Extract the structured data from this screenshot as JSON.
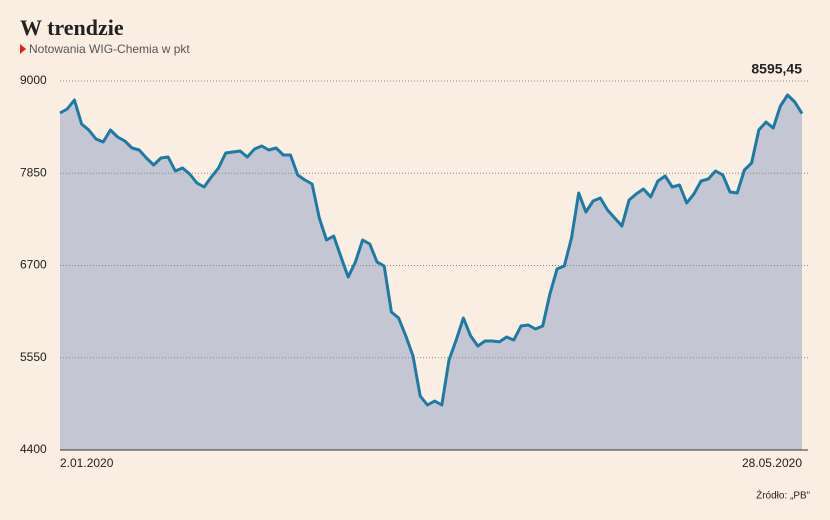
{
  "chart_data": {
    "type": "area",
    "title": "W trendzie",
    "subtitle": "Notowania WIG-Chemia w pkt",
    "source": "Źródło: „PB”",
    "categories": [
      "2.01.2020",
      null,
      null,
      null,
      null,
      null,
      null,
      null,
      null,
      null,
      null,
      null,
      null,
      null,
      null,
      null,
      null,
      null,
      null,
      null,
      null,
      null,
      null,
      null,
      null,
      null,
      null,
      null,
      null,
      null,
      null,
      null,
      null,
      null,
      null,
      null,
      null,
      null,
      null,
      null,
      null,
      null,
      null,
      null,
      null,
      null,
      null,
      null,
      null,
      null,
      null,
      null,
      null,
      null,
      null,
      null,
      null,
      null,
      null,
      null,
      null,
      null,
      null,
      null,
      null,
      null,
      null,
      null,
      null,
      null,
      null,
      null,
      null,
      null,
      null,
      null,
      null,
      null,
      null,
      null,
      null,
      null,
      null,
      null,
      null,
      null,
      null,
      null,
      null,
      null,
      null,
      null,
      null,
      null,
      null,
      null,
      null,
      null,
      null,
      null,
      null,
      null,
      null,
      "28.05.2020"
    ],
    "values": [
      8601,
      8651,
      8763,
      8464,
      8389,
      8277,
      8240,
      8389,
      8302,
      8252,
      8165,
      8140,
      8040,
      7953,
      8040,
      8053,
      7878,
      7915,
      7841,
      7728,
      7679,
      7803,
      7915,
      8102,
      8115,
      8127,
      8053,
      8152,
      8190,
      8140,
      8165,
      8078,
      8078,
      7828,
      7766,
      7716,
      7292,
      7018,
      7068,
      6806,
      6557,
      6744,
      7018,
      6968,
      6744,
      6694,
      6120,
      6046,
      5822,
      5572,
      5073,
      4961,
      5011,
      4961,
      5522,
      5771,
      6046,
      5822,
      5697,
      5759,
      5759,
      5747,
      5809,
      5771,
      5946,
      5958,
      5908,
      5946,
      6345,
      6657,
      6694,
      7043,
      7604,
      7367,
      7504,
      7542,
      7392,
      7292,
      7193,
      7517,
      7592,
      7654,
      7554,
      7753,
      7816,
      7679,
      7704,
      7479,
      7592,
      7753,
      7778,
      7878,
      7828,
      7616,
      7604,
      7890,
      7978,
      8389,
      8489,
      8414,
      8688,
      8825,
      8738,
      8595.45
    ],
    "value_labels": [
      null,
      null,
      null,
      null,
      null,
      null,
      null,
      null,
      null,
      null,
      null,
      null,
      null,
      null,
      null,
      null,
      null,
      null,
      null,
      null,
      null,
      null,
      null,
      null,
      null,
      null,
      null,
      null,
      null,
      null,
      null,
      null,
      null,
      null,
      null,
      null,
      null,
      null,
      null,
      null,
      null,
      null,
      null,
      null,
      null,
      null,
      null,
      null,
      null,
      null,
      null,
      null,
      null,
      null,
      null,
      null,
      null,
      null,
      null,
      null,
      null,
      null,
      null,
      null,
      null,
      null,
      null,
      null,
      null,
      null,
      null,
      null,
      null,
      null,
      null,
      null,
      null,
      null,
      null,
      null,
      null,
      null,
      null,
      null,
      null,
      null,
      null,
      null,
      null,
      null,
      null,
      null,
      null,
      null,
      null,
      null,
      null,
      null,
      null,
      null,
      null,
      null,
      null,
      "8595,45"
    ],
    "color": "#1c7aa3",
    "fill": "#c4c6d4",
    "ylim": [
      4400,
      9000
    ],
    "yticks": [
      4400,
      5550,
      6700,
      7850,
      9000
    ],
    "grid": true
  }
}
